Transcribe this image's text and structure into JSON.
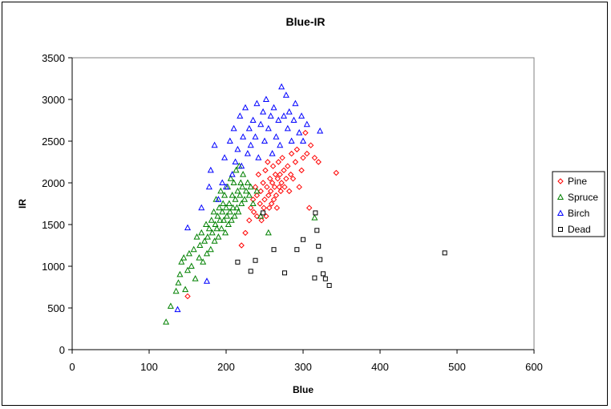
{
  "chart_data": {
    "type": "scatter",
    "title": "Blue-IR",
    "xlabel": "Blue",
    "ylabel": "IR",
    "xlim": [
      0,
      600
    ],
    "ylim": [
      0,
      3500
    ],
    "xticks": [
      0,
      100,
      200,
      300,
      400,
      500,
      600
    ],
    "yticks": [
      0,
      500,
      1000,
      1500,
      2000,
      2500,
      3000,
      3500
    ],
    "grid": false,
    "legend_position": "right",
    "series": [
      {
        "name": "Pine",
        "marker": "diamond",
        "color": "#ff0000",
        "points": [
          [
            150,
            640
          ],
          [
            220,
            1250
          ],
          [
            225,
            1400
          ],
          [
            230,
            1550
          ],
          [
            232,
            1700
          ],
          [
            235,
            1800
          ],
          [
            236,
            1650
          ],
          [
            238,
            1950
          ],
          [
            240,
            1600
          ],
          [
            240,
            1850
          ],
          [
            242,
            2100
          ],
          [
            244,
            1750
          ],
          [
            245,
            1900
          ],
          [
            246,
            1550
          ],
          [
            248,
            2000
          ],
          [
            249,
            1700
          ],
          [
            250,
            1800
          ],
          [
            251,
            2150
          ],
          [
            252,
            1600
          ],
          [
            253,
            1950
          ],
          [
            254,
            2250
          ],
          [
            255,
            1850
          ],
          [
            256,
            1700
          ],
          [
            257,
            2050
          ],
          [
            258,
            1900
          ],
          [
            259,
            1750
          ],
          [
            260,
            2000
          ],
          [
            261,
            2200
          ],
          [
            262,
            1800
          ],
          [
            263,
            1950
          ],
          [
            264,
            2100
          ],
          [
            265,
            1850
          ],
          [
            266,
            1700
          ],
          [
            267,
            2050
          ],
          [
            268,
            2250
          ],
          [
            269,
            1950
          ],
          [
            270,
            2100
          ],
          [
            271,
            1900
          ],
          [
            272,
            2000
          ],
          [
            273,
            2300
          ],
          [
            275,
            2150
          ],
          [
            276,
            1950
          ],
          [
            278,
            2050
          ],
          [
            280,
            2200
          ],
          [
            282,
            1900
          ],
          [
            284,
            2100
          ],
          [
            285,
            2350
          ],
          [
            287,
            2050
          ],
          [
            290,
            2250
          ],
          [
            292,
            2400
          ],
          [
            295,
            1950
          ],
          [
            298,
            2150
          ],
          [
            300,
            2300
          ],
          [
            303,
            2600
          ],
          [
            305,
            2350
          ],
          [
            308,
            1700
          ],
          [
            310,
            2450
          ],
          [
            315,
            2300
          ],
          [
            320,
            2250
          ],
          [
            343,
            2120
          ]
        ]
      },
      {
        "name": "Spruce",
        "marker": "triangle",
        "color": "#008000",
        "points": [
          [
            122,
            330
          ],
          [
            128,
            520
          ],
          [
            135,
            700
          ],
          [
            138,
            800
          ],
          [
            140,
            900
          ],
          [
            142,
            1050
          ],
          [
            145,
            1100
          ],
          [
            147,
            720
          ],
          [
            150,
            950
          ],
          [
            152,
            1150
          ],
          [
            155,
            1000
          ],
          [
            158,
            1200
          ],
          [
            160,
            850
          ],
          [
            162,
            1350
          ],
          [
            165,
            1100
          ],
          [
            166,
            1250
          ],
          [
            168,
            1400
          ],
          [
            170,
            1050
          ],
          [
            172,
            1300
          ],
          [
            174,
            1500
          ],
          [
            175,
            1150
          ],
          [
            176,
            1350
          ],
          [
            178,
            1450
          ],
          [
            180,
            1200
          ],
          [
            181,
            1550
          ],
          [
            182,
            1400
          ],
          [
            184,
            1650
          ],
          [
            185,
            1300
          ],
          [
            186,
            1500
          ],
          [
            187,
            1800
          ],
          [
            188,
            1450
          ],
          [
            189,
            1600
          ],
          [
            190,
            1350
          ],
          [
            191,
            1700
          ],
          [
            192,
            1550
          ],
          [
            193,
            1900
          ],
          [
            194,
            1450
          ],
          [
            195,
            1650
          ],
          [
            196,
            1750
          ],
          [
            197,
            1550
          ],
          [
            198,
            1850
          ],
          [
            199,
            1400
          ],
          [
            200,
            1700
          ],
          [
            201,
            1600
          ],
          [
            202,
            1950
          ],
          [
            203,
            1500
          ],
          [
            204,
            1750
          ],
          [
            205,
            1650
          ],
          [
            206,
            2050
          ],
          [
            207,
            1550
          ],
          [
            208,
            1850
          ],
          [
            209,
            1700
          ],
          [
            210,
            2000
          ],
          [
            211,
            1600
          ],
          [
            212,
            1800
          ],
          [
            213,
            2150
          ],
          [
            214,
            1700
          ],
          [
            215,
            1900
          ],
          [
            216,
            1650
          ],
          [
            217,
            2200
          ],
          [
            218,
            1850
          ],
          [
            219,
            2000
          ],
          [
            220,
            1750
          ],
          [
            221,
            1950
          ],
          [
            222,
            2100
          ],
          [
            224,
            1800
          ],
          [
            226,
            1900
          ],
          [
            228,
            2000
          ],
          [
            230,
            1850
          ],
          [
            232,
            1950
          ],
          [
            235,
            1750
          ],
          [
            240,
            1900
          ],
          [
            245,
            1600
          ],
          [
            255,
            1400
          ],
          [
            315,
            1580
          ]
        ]
      },
      {
        "name": "Birch",
        "marker": "triangle",
        "color": "#0000ff",
        "points": [
          [
            137,
            480
          ],
          [
            150,
            1460
          ],
          [
            168,
            1700
          ],
          [
            175,
            820
          ],
          [
            178,
            1950
          ],
          [
            180,
            2150
          ],
          [
            185,
            2450
          ],
          [
            190,
            1800
          ],
          [
            195,
            2000
          ],
          [
            198,
            2300
          ],
          [
            200,
            1950
          ],
          [
            205,
            2500
          ],
          [
            208,
            2100
          ],
          [
            210,
            2650
          ],
          [
            212,
            2250
          ],
          [
            215,
            2400
          ],
          [
            218,
            2800
          ],
          [
            220,
            2200
          ],
          [
            222,
            2550
          ],
          [
            225,
            2900
          ],
          [
            228,
            2350
          ],
          [
            230,
            2650
          ],
          [
            232,
            2450
          ],
          [
            235,
            2750
          ],
          [
            238,
            2550
          ],
          [
            240,
            2950
          ],
          [
            242,
            2300
          ],
          [
            245,
            2700
          ],
          [
            248,
            2850
          ],
          [
            250,
            2500
          ],
          [
            252,
            3000
          ],
          [
            255,
            2650
          ],
          [
            258,
            2800
          ],
          [
            260,
            2350
          ],
          [
            262,
            2900
          ],
          [
            265,
            2550
          ],
          [
            268,
            2750
          ],
          [
            270,
            2450
          ],
          [
            272,
            3150
          ],
          [
            275,
            2800
          ],
          [
            278,
            3050
          ],
          [
            280,
            2650
          ],
          [
            282,
            2850
          ],
          [
            285,
            2500
          ],
          [
            288,
            2750
          ],
          [
            290,
            2950
          ],
          [
            295,
            2600
          ],
          [
            298,
            2800
          ],
          [
            300,
            2500
          ],
          [
            305,
            2700
          ],
          [
            322,
            2620
          ]
        ]
      },
      {
        "name": "Dead",
        "marker": "square",
        "color": "#000000",
        "points": [
          [
            215,
            1050
          ],
          [
            232,
            940
          ],
          [
            238,
            1070
          ],
          [
            248,
            1640
          ],
          [
            262,
            1200
          ],
          [
            276,
            920
          ],
          [
            292,
            1200
          ],
          [
            300,
            1320
          ],
          [
            315,
            860
          ],
          [
            316,
            1640
          ],
          [
            318,
            1430
          ],
          [
            320,
            1240
          ],
          [
            322,
            1080
          ],
          [
            326,
            910
          ],
          [
            329,
            850
          ],
          [
            334,
            770
          ],
          [
            484,
            1160
          ]
        ]
      }
    ]
  }
}
